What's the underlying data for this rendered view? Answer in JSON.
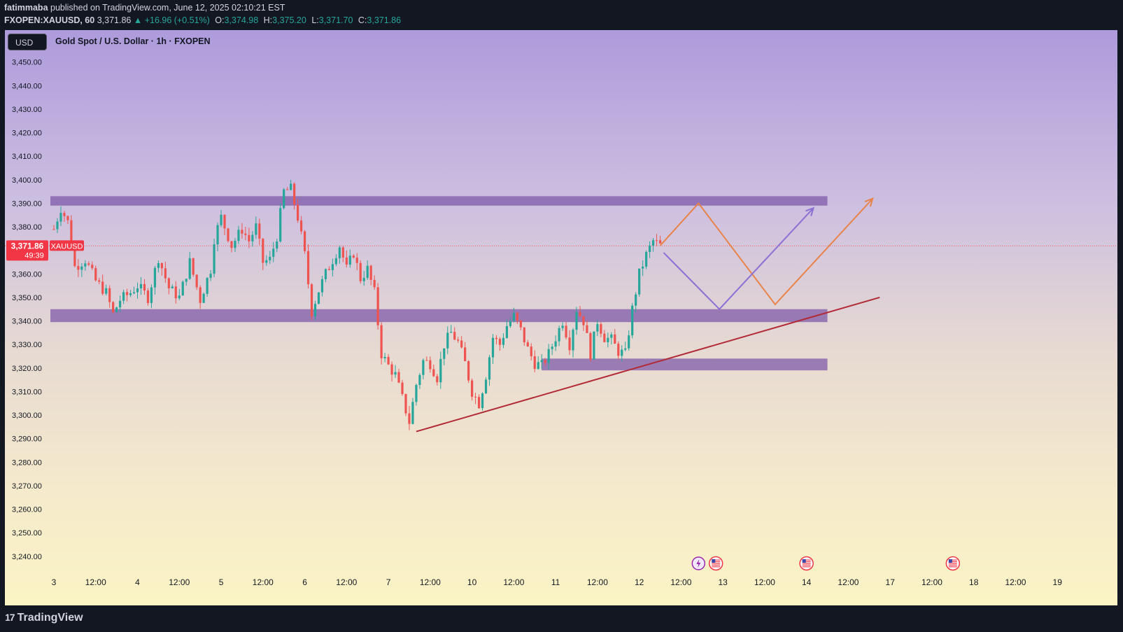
{
  "header": {
    "author": "fatimmaba",
    "published": "published on TradingView.com, June 12, 2025 02:10:21 EST",
    "symbol": "FXOPEN:XAUUSD, 60",
    "last": "3,371.86",
    "change": "▲ +16.96 (+0.51%)",
    "o_label": "O:",
    "o_value": "3,374.98",
    "h_label": "H:",
    "h_value": "3,375.20",
    "l_label": "L:",
    "l_value": "3,371.70",
    "c_label": "C:",
    "c_value": "3,371.86"
  },
  "chart_title": "Gold Spot / U.S. Dollar · 1h · FXOPEN",
  "currency_button": "USD",
  "logo_text": "TradingView",
  "price_tag": {
    "price": "3,371.86",
    "countdown": "49:39",
    "symbol": "XAUUSD"
  },
  "colors": {
    "up": "#26a69a",
    "down": "#ef5350",
    "zone": "#7b56a8",
    "trend": "#b22a35",
    "orange": "#e8834a",
    "purple": "#8c6fd4"
  },
  "chart_data": {
    "type": "candlestick",
    "title": "Gold Spot / U.S. Dollar · 1h · FXOPEN",
    "ylim": [
      3234,
      3460
    ],
    "y_ticks": [
      3450,
      3440,
      3430,
      3420,
      3410,
      3400,
      3390,
      3380,
      3370,
      3360,
      3350,
      3340,
      3330,
      3320,
      3310,
      3300,
      3290,
      3280,
      3270,
      3260,
      3250,
      3240
    ],
    "y_tick_labels": [
      "3,450.00",
      "3,440.00",
      "3,430.00",
      "3,420.00",
      "3,410.00",
      "3,400.00",
      "3,390.00",
      "3,380.00",
      "3,370.00",
      "3,360.00",
      "3,350.00",
      "3,340.00",
      "3,330.00",
      "3,320.00",
      "3,310.00",
      "3,300.00",
      "3,290.00",
      "3,280.00",
      "3,270.00",
      "3,260.00",
      "3,250.00",
      "3,240.00"
    ],
    "x_range": [
      0,
      236
    ],
    "x_ticks": [
      {
        "i": 0,
        "label": "3"
      },
      {
        "i": 12,
        "label": "12:00"
      },
      {
        "i": 24,
        "label": "4"
      },
      {
        "i": 36,
        "label": "12:00"
      },
      {
        "i": 48,
        "label": "5"
      },
      {
        "i": 60,
        "label": "12:00"
      },
      {
        "i": 72,
        "label": "6"
      },
      {
        "i": 84,
        "label": "12:00"
      },
      {
        "i": 96,
        "label": "7"
      },
      {
        "i": 108,
        "label": "12:00"
      },
      {
        "i": 120,
        "label": "10"
      },
      {
        "i": 132,
        "label": "12:00"
      },
      {
        "i": 144,
        "label": "11"
      },
      {
        "i": 156,
        "label": "12:00"
      },
      {
        "i": 168,
        "label": "12"
      },
      {
        "i": 180,
        "label": "12:00"
      },
      {
        "i": 192,
        "label": "13"
      },
      {
        "i": 204,
        "label": "12:00"
      },
      {
        "i": 216,
        "label": "14"
      },
      {
        "i": 228,
        "label": "12:00"
      },
      {
        "i": 240,
        "label": "17"
      },
      {
        "i": 252,
        "label": "12:00"
      },
      {
        "i": 264,
        "label": "18"
      },
      {
        "i": 276,
        "label": "12:00"
      },
      {
        "i": 288,
        "label": "19"
      }
    ],
    "ohlc_keypoints": [
      [
        0,
        3379
      ],
      [
        2,
        3388
      ],
      [
        4,
        3382
      ],
      [
        6,
        3363
      ],
      [
        9,
        3366
      ],
      [
        12,
        3357
      ],
      [
        15,
        3352
      ],
      [
        17,
        3343
      ],
      [
        19,
        3349
      ],
      [
        22,
        3352
      ],
      [
        24,
        3355
      ],
      [
        27,
        3350
      ],
      [
        30,
        3367
      ],
      [
        33,
        3354
      ],
      [
        36,
        3350
      ],
      [
        39,
        3365
      ],
      [
        42,
        3349
      ],
      [
        45,
        3362
      ],
      [
        46,
        3375
      ],
      [
        48,
        3384
      ],
      [
        51,
        3372
      ],
      [
        54,
        3379
      ],
      [
        56,
        3374
      ],
      [
        58,
        3380
      ],
      [
        60,
        3365
      ],
      [
        62,
        3366
      ],
      [
        64,
        3376
      ],
      [
        66,
        3395
      ],
      [
        68,
        3396
      ],
      [
        70,
        3384
      ],
      [
        72,
        3368
      ],
      [
        74,
        3344
      ],
      [
        76,
        3353
      ],
      [
        78,
        3360
      ],
      [
        80,
        3366
      ],
      [
        82,
        3372
      ],
      [
        84,
        3362
      ],
      [
        86,
        3369
      ],
      [
        88,
        3358
      ],
      [
        90,
        3362
      ],
      [
        92,
        3352
      ],
      [
        94,
        3326
      ],
      [
        96,
        3321
      ],
      [
        98,
        3317
      ],
      [
        100,
        3307
      ],
      [
        102,
        3297
      ],
      [
        104,
        3313
      ],
      [
        106,
        3323
      ],
      [
        108,
        3322
      ],
      [
        110,
        3316
      ],
      [
        112,
        3330
      ],
      [
        114,
        3335
      ],
      [
        116,
        3331
      ],
      [
        118,
        3322
      ],
      [
        120,
        3310
      ],
      [
        122,
        3305
      ],
      [
        124,
        3317
      ],
      [
        126,
        3333
      ],
      [
        128,
        3330
      ],
      [
        130,
        3338
      ],
      [
        132,
        3342
      ],
      [
        134,
        3336
      ],
      [
        136,
        3328
      ],
      [
        138,
        3322
      ],
      [
        140,
        3321
      ],
      [
        142,
        3326
      ],
      [
        144,
        3333
      ],
      [
        146,
        3340
      ],
      [
        148,
        3330
      ],
      [
        150,
        3345
      ],
      [
        152,
        3340
      ],
      [
        154,
        3326
      ],
      [
        156,
        3340
      ],
      [
        158,
        3333
      ],
      [
        160,
        3332
      ],
      [
        162,
        3327
      ],
      [
        164,
        3326
      ],
      [
        166,
        3345
      ],
      [
        168,
        3360
      ],
      [
        170,
        3368
      ],
      [
        172,
        3374
      ],
      [
        174,
        3372
      ]
    ],
    "zones": [
      {
        "from_i": -1,
        "to_i": 222,
        "low": 3389,
        "high": 3393
      },
      {
        "from_i": -1,
        "to_i": 222,
        "low": 3339.5,
        "high": 3345
      },
      {
        "from_i": 140,
        "to_i": 222,
        "low": 3319,
        "high": 3324
      }
    ],
    "trendline": [
      {
        "i": 104,
        "y": 3293
      },
      {
        "i": 237,
        "y": 3350
      }
    ],
    "current_price_line": 3371.86,
    "projection_orange": [
      {
        "i": 174,
        "y": 3372
      },
      {
        "i": 185,
        "y": 3390
      },
      {
        "i": 207,
        "y": 3347
      },
      {
        "i": 235,
        "y": 3392
      }
    ],
    "projection_purple": [
      {
        "i": 175,
        "y": 3369
      },
      {
        "i": 191,
        "y": 3345
      },
      {
        "i": 218,
        "y": 3388
      }
    ],
    "event_icons": [
      {
        "i": 185,
        "kind": "bolt"
      },
      {
        "i": 190,
        "kind": "flag"
      },
      {
        "i": 216,
        "kind": "flag"
      },
      {
        "i": 258,
        "kind": "flag"
      }
    ]
  }
}
